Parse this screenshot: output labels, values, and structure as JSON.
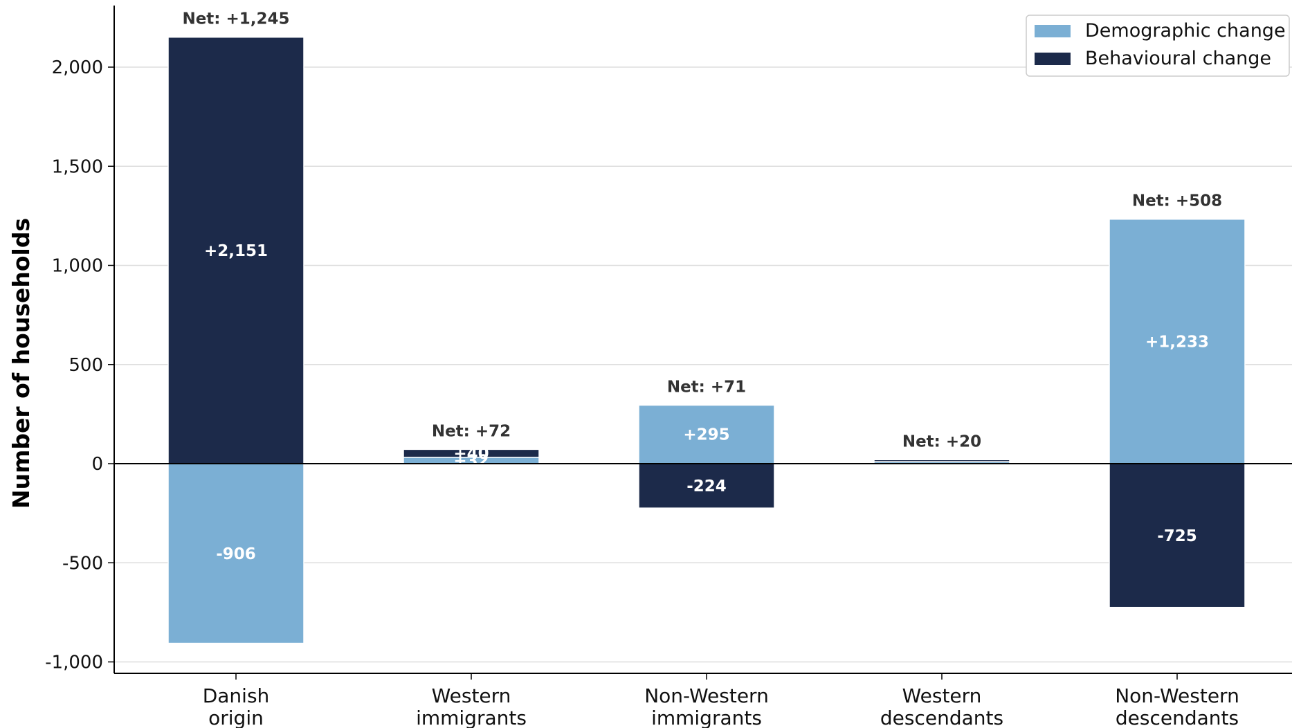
{
  "chart_data": {
    "type": "bar",
    "stacked": true,
    "ylabel": "Number of households",
    "ylim": [
      -1060,
      2320
    ],
    "yticks": [
      -1000,
      -500,
      0,
      500,
      1000,
      1500,
      2000
    ],
    "ytick_labels": [
      "-1,000",
      "-500",
      "0",
      "500",
      "1,000",
      "1,500",
      "2,000"
    ],
    "grid": "horizontal",
    "legend_position": "top-right",
    "categories": [
      [
        "Danish",
        "origin"
      ],
      [
        "Western",
        "immigrants"
      ],
      [
        "Non-Western",
        "immigrants"
      ],
      [
        "Western",
        "descendants"
      ],
      [
        "Non-Western",
        "descendants"
      ]
    ],
    "series": [
      {
        "name": "Demographic change",
        "color": "#7bafd4",
        "values": [
          -906,
          32,
          295,
          10,
          1233
        ],
        "labels": [
          "-906",
          "+32",
          "+295",
          "",
          "+1,233"
        ]
      },
      {
        "name": "Behavioural change",
        "color": "#1c2a4a",
        "values": [
          2151,
          40,
          -224,
          10,
          -725
        ],
        "labels": [
          "+2,151",
          "+40",
          "-224",
          "",
          "-725"
        ]
      }
    ],
    "net_values": [
      1245,
      72,
      71,
      20,
      508
    ],
    "net_labels": [
      "Net: +1,245",
      "Net: +72",
      "Net: +71",
      "Net: +20",
      "Net: +508"
    ]
  }
}
